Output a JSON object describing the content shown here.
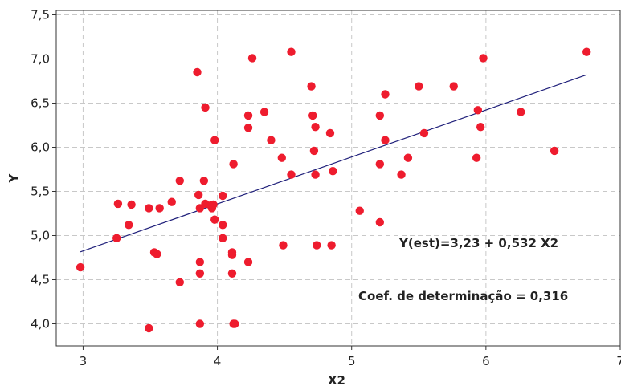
{
  "chart_data": {
    "type": "scatter",
    "xlabel": "X2",
    "ylabel": "Y",
    "xlim": [
      2.8,
      7.0
    ],
    "ylim": [
      3.75,
      7.55
    ],
    "xticks": [
      3,
      4,
      5,
      6,
      7
    ],
    "xtick_labels": [
      "3",
      "4",
      "5",
      "6",
      "7"
    ],
    "yticks": [
      4.0,
      4.5,
      5.0,
      5.5,
      6.0,
      6.5,
      7.0,
      7.5
    ],
    "ytick_labels": [
      "4,0",
      "4,5",
      "5,0",
      "5,5",
      "6,0",
      "6,5",
      "7,0",
      "7,5"
    ],
    "grid": true,
    "point_color": "#ee1c2e",
    "line_color": "#1f1f7a",
    "fit_line": {
      "intercept": 3.23,
      "slope": 0.532,
      "x_range": [
        2.98,
        6.75
      ]
    },
    "annotations": {
      "equation": "Y(est)=3,23 + 0,532 X2",
      "r2": "Coef. de determinação = 0,316"
    },
    "points": [
      [
        2.98,
        4.64
      ],
      [
        3.25,
        4.97
      ],
      [
        3.26,
        5.36
      ],
      [
        3.34,
        5.12
      ],
      [
        3.36,
        5.35
      ],
      [
        3.49,
        5.31
      ],
      [
        3.49,
        3.95
      ],
      [
        3.53,
        4.81
      ],
      [
        3.55,
        4.79
      ],
      [
        3.57,
        5.31
      ],
      [
        3.66,
        5.38
      ],
      [
        3.72,
        5.62
      ],
      [
        3.72,
        4.47
      ],
      [
        3.85,
        6.85
      ],
      [
        3.86,
        5.46
      ],
      [
        3.87,
        5.31
      ],
      [
        3.87,
        4.7
      ],
      [
        3.87,
        4.57
      ],
      [
        3.87,
        4.0
      ],
      [
        3.9,
        5.62
      ],
      [
        3.91,
        5.36
      ],
      [
        3.91,
        6.45
      ],
      [
        3.95,
        5.34
      ],
      [
        3.96,
        5.31
      ],
      [
        3.97,
        5.35
      ],
      [
        3.98,
        6.08
      ],
      [
        3.98,
        5.18
      ],
      [
        4.04,
        5.45
      ],
      [
        4.04,
        5.12
      ],
      [
        4.04,
        4.97
      ],
      [
        4.11,
        4.81
      ],
      [
        4.11,
        4.78
      ],
      [
        4.11,
        4.57
      ],
      [
        4.12,
        5.81
      ],
      [
        4.12,
        4.0
      ],
      [
        4.13,
        4.0
      ],
      [
        4.23,
        6.36
      ],
      [
        4.23,
        6.22
      ],
      [
        4.23,
        4.7
      ],
      [
        4.26,
        7.01
      ],
      [
        4.35,
        6.4
      ],
      [
        4.4,
        6.08
      ],
      [
        4.48,
        5.88
      ],
      [
        4.49,
        4.89
      ],
      [
        4.55,
        5.69
      ],
      [
        4.55,
        7.08
      ],
      [
        4.7,
        6.69
      ],
      [
        4.71,
        6.36
      ],
      [
        4.72,
        5.96
      ],
      [
        4.73,
        6.23
      ],
      [
        4.73,
        5.69
      ],
      [
        4.74,
        4.89
      ],
      [
        4.84,
        6.16
      ],
      [
        4.85,
        4.89
      ],
      [
        4.86,
        5.73
      ],
      [
        5.06,
        5.28
      ],
      [
        5.21,
        6.36
      ],
      [
        5.21,
        5.81
      ],
      [
        5.21,
        5.15
      ],
      [
        5.25,
        6.6
      ],
      [
        5.25,
        6.08
      ],
      [
        5.37,
        5.69
      ],
      [
        5.42,
        5.88
      ],
      [
        5.5,
        6.69
      ],
      [
        5.54,
        6.16
      ],
      [
        5.76,
        6.69
      ],
      [
        5.93,
        5.88
      ],
      [
        5.94,
        6.42
      ],
      [
        5.96,
        6.23
      ],
      [
        5.98,
        7.01
      ],
      [
        6.26,
        6.4
      ],
      [
        6.51,
        5.96
      ],
      [
        6.75,
        7.08
      ]
    ]
  }
}
